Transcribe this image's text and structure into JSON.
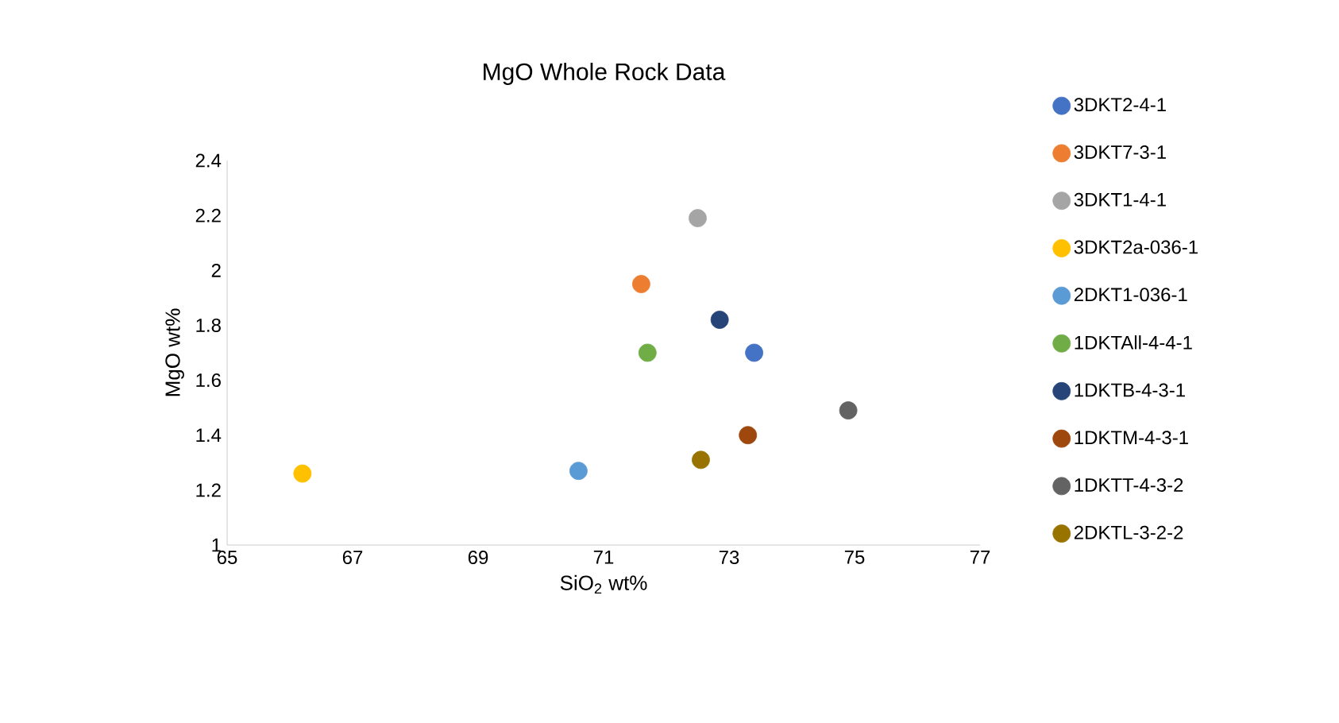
{
  "chart_data": {
    "type": "scatter",
    "title": "MgO Whole Rock Data",
    "xlabel": "SiO$_{2}$  wt%",
    "ylabel": "MgO wt%",
    "xlim": [
      65,
      77
    ],
    "xticks": [
      65,
      67,
      69,
      71,
      73,
      75,
      77
    ],
    "ylim": [
      1,
      2.4
    ],
    "yticks": [
      1,
      1.2,
      1.4,
      1.6,
      1.8,
      2,
      2.2,
      2.4
    ],
    "grid": false,
    "legend": "right",
    "marker": "circle",
    "series": [
      {
        "name": "3DKT2-4-1",
        "color": "#4472c4",
        "x": [
          73.4
        ],
        "values": [
          1.7
        ]
      },
      {
        "name": "3DKT7-3-1",
        "color": "#ed7d31",
        "x": [
          71.6
        ],
        "values": [
          1.95
        ]
      },
      {
        "name": "3DKT1-4-1",
        "color": "#a5a5a5",
        "x": [
          72.5
        ],
        "values": [
          2.19
        ]
      },
      {
        "name": "3DKT2a-036-1",
        "color": "#ffc000",
        "x": [
          66.2
        ],
        "values": [
          1.26
        ]
      },
      {
        "name": "2DKT1-036-1",
        "color": "#5b9bd5",
        "x": [
          70.6
        ],
        "values": [
          1.27
        ]
      },
      {
        "name": "1DKTAll-4-4-1",
        "color": "#70ad47",
        "x": [
          71.7
        ],
        "values": [
          1.7
        ]
      },
      {
        "name": "1DKTB-4-3-1",
        "color": "#264478",
        "x": [
          72.85
        ],
        "values": [
          1.82
        ]
      },
      {
        "name": "1DKTM-4-3-1",
        "color": "#9e480e",
        "x": [
          73.3
        ],
        "values": [
          1.4
        ]
      },
      {
        "name": "1DKTT-4-3-2",
        "color": "#636363",
        "x": [
          74.9
        ],
        "values": [
          1.49
        ]
      },
      {
        "name": "2DKTL-3-2-2",
        "color": "#997300",
        "x": [
          72.55
        ],
        "values": [
          1.31
        ]
      }
    ]
  }
}
